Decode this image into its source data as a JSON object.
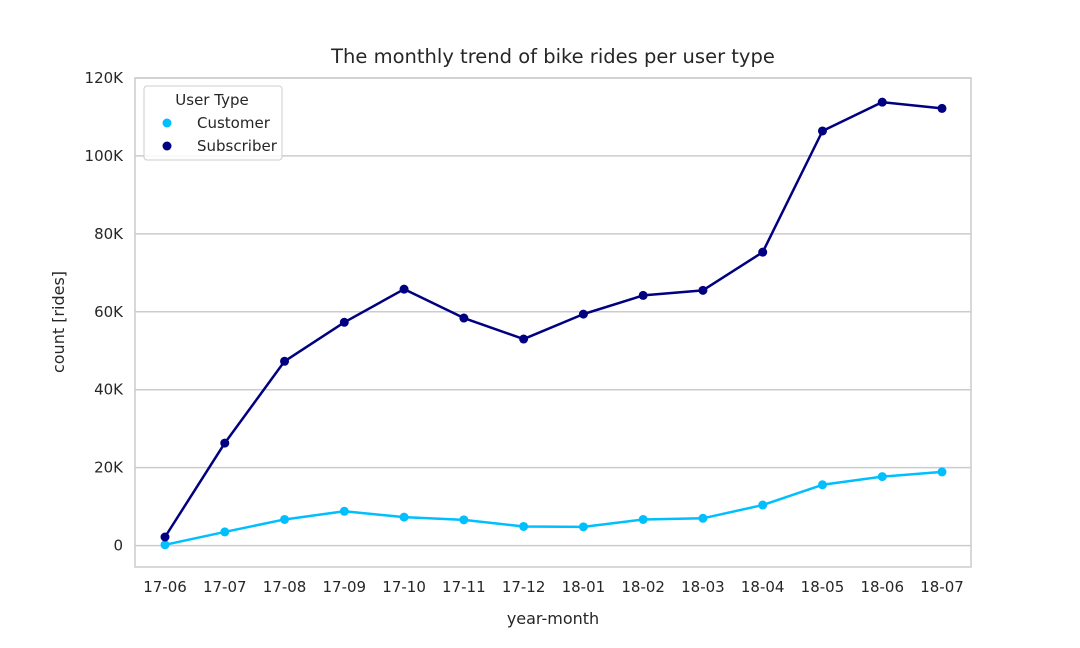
{
  "chart_data": {
    "type": "line",
    "title": "The monthly trend of bike rides per user type",
    "xlabel": "year-month",
    "ylabel": "count [rides]",
    "categories": [
      "17-06",
      "17-07",
      "17-08",
      "17-09",
      "17-10",
      "17-11",
      "17-12",
      "18-01",
      "18-02",
      "18-03",
      "18-04",
      "18-05",
      "18-06",
      "18-07"
    ],
    "ylim": [
      -5500,
      120000
    ],
    "yticks": [
      0,
      20000,
      40000,
      60000,
      80000,
      100000,
      120000
    ],
    "ytick_labels": [
      "0",
      "20K",
      "40K",
      "60K",
      "80K",
      "100K",
      "120K"
    ],
    "grid": "horizontal",
    "legend": {
      "title": "User Type",
      "placement": "top-left"
    },
    "series": [
      {
        "name": "Customer",
        "color": "#00bfff",
        "values": [
          200,
          3500,
          6700,
          8800,
          7300,
          6600,
          4900,
          4800,
          6700,
          7000,
          10400,
          15600,
          17700,
          18900
        ]
      },
      {
        "name": "Subscriber",
        "color": "#000080",
        "values": [
          2200,
          26300,
          47300,
          57300,
          65800,
          58400,
          53000,
          59400,
          64200,
          65500,
          75300,
          106400,
          113800,
          112200
        ]
      }
    ]
  }
}
